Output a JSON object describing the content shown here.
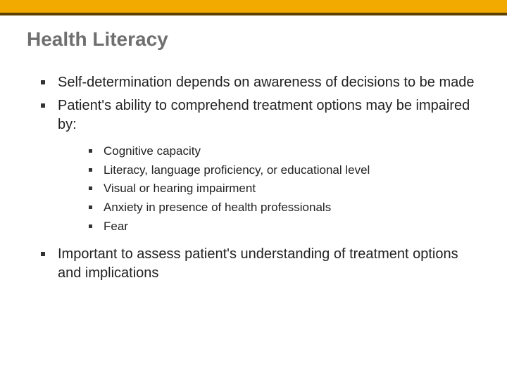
{
  "colors": {
    "bar_fill": "#f2a900",
    "bar_border": "#5b4100",
    "title_color": "#6f6f6f",
    "text_color": "#222222",
    "bullet_color": "#333333",
    "background": "#ffffff"
  },
  "title": "Health Literacy",
  "bullets_l1_a": "Self-determination depends on awareness of decisions to be made",
  "bullets_l1_b": "Patient's ability to comprehend treatment options may be impaired by:",
  "bullets_l2": {
    "a": "Cognitive capacity",
    "b": "Literacy, language proficiency, or educational level",
    "c": "Visual or hearing impairment",
    "d": "Anxiety in presence of health professionals",
    "e": "Fear"
  },
  "bullets_l1_c": "Important to assess patient's understanding of treatment options and implications"
}
